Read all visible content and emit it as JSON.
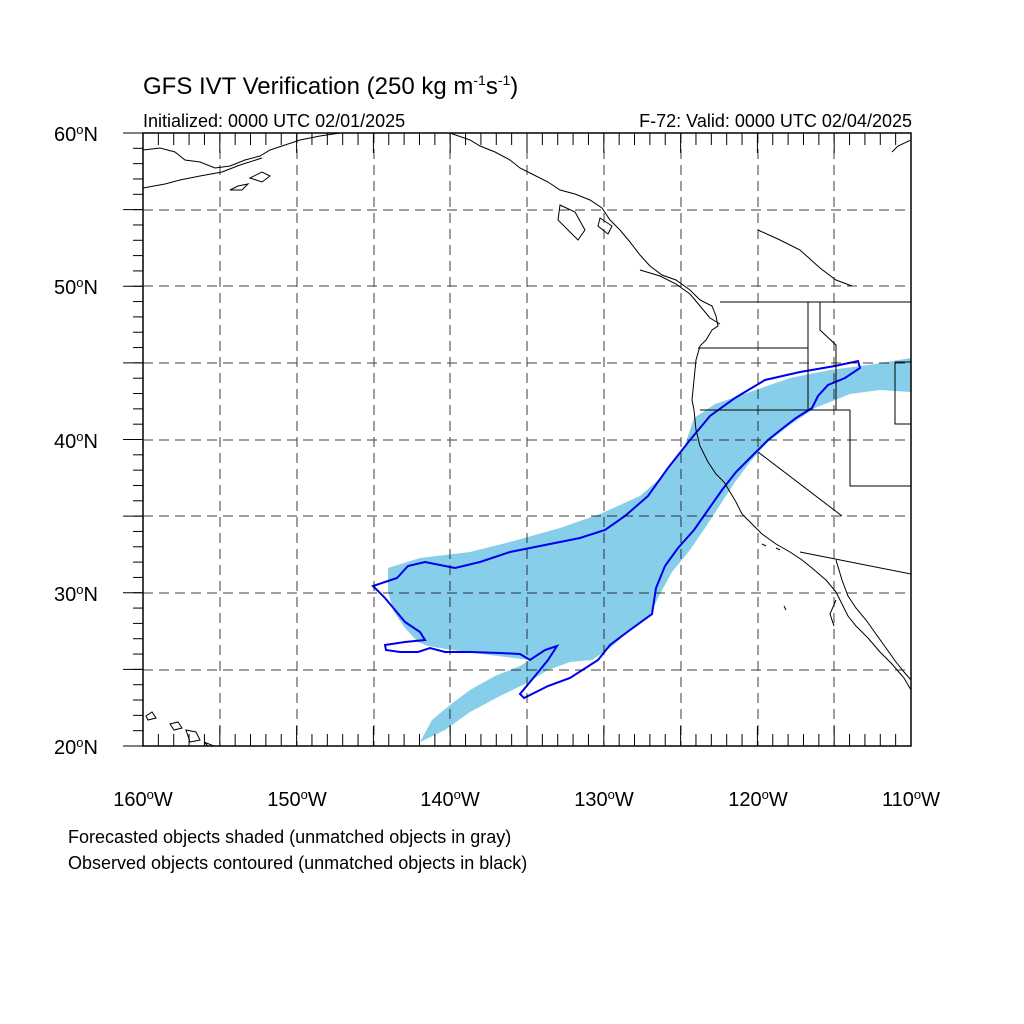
{
  "title": {
    "main": "GFS IVT Verification (250 kg m",
    "sup1": "-1",
    "mid": "s",
    "sup2": "-1",
    "end": ")"
  },
  "initialized": "Initialized: 0000 UTC 02/01/2025",
  "valid": "F-72: Valid: 0000 UTC 02/04/2025",
  "lat_labels": [
    "60",
    "50",
    "40",
    "30",
    "20"
  ],
  "lon_labels": [
    "160",
    "150",
    "140",
    "130",
    "120",
    "110"
  ],
  "lat_suffix": "N",
  "lon_suffix": "W",
  "degree_symbol": "o",
  "caption_line1": "Forecasted objects shaded (unmatched objects in gray)",
  "caption_line2": "Observed objects contoured (unmatched objects in black)",
  "colors": {
    "forecast_fill": "#87ceeb",
    "observed_contour": "#0000ee",
    "coastline": "#000000",
    "grid": "#000000"
  },
  "map_extent": {
    "lon_min": -160,
    "lon_max": -110,
    "lat_min": 20,
    "lat_max": 60
  }
}
